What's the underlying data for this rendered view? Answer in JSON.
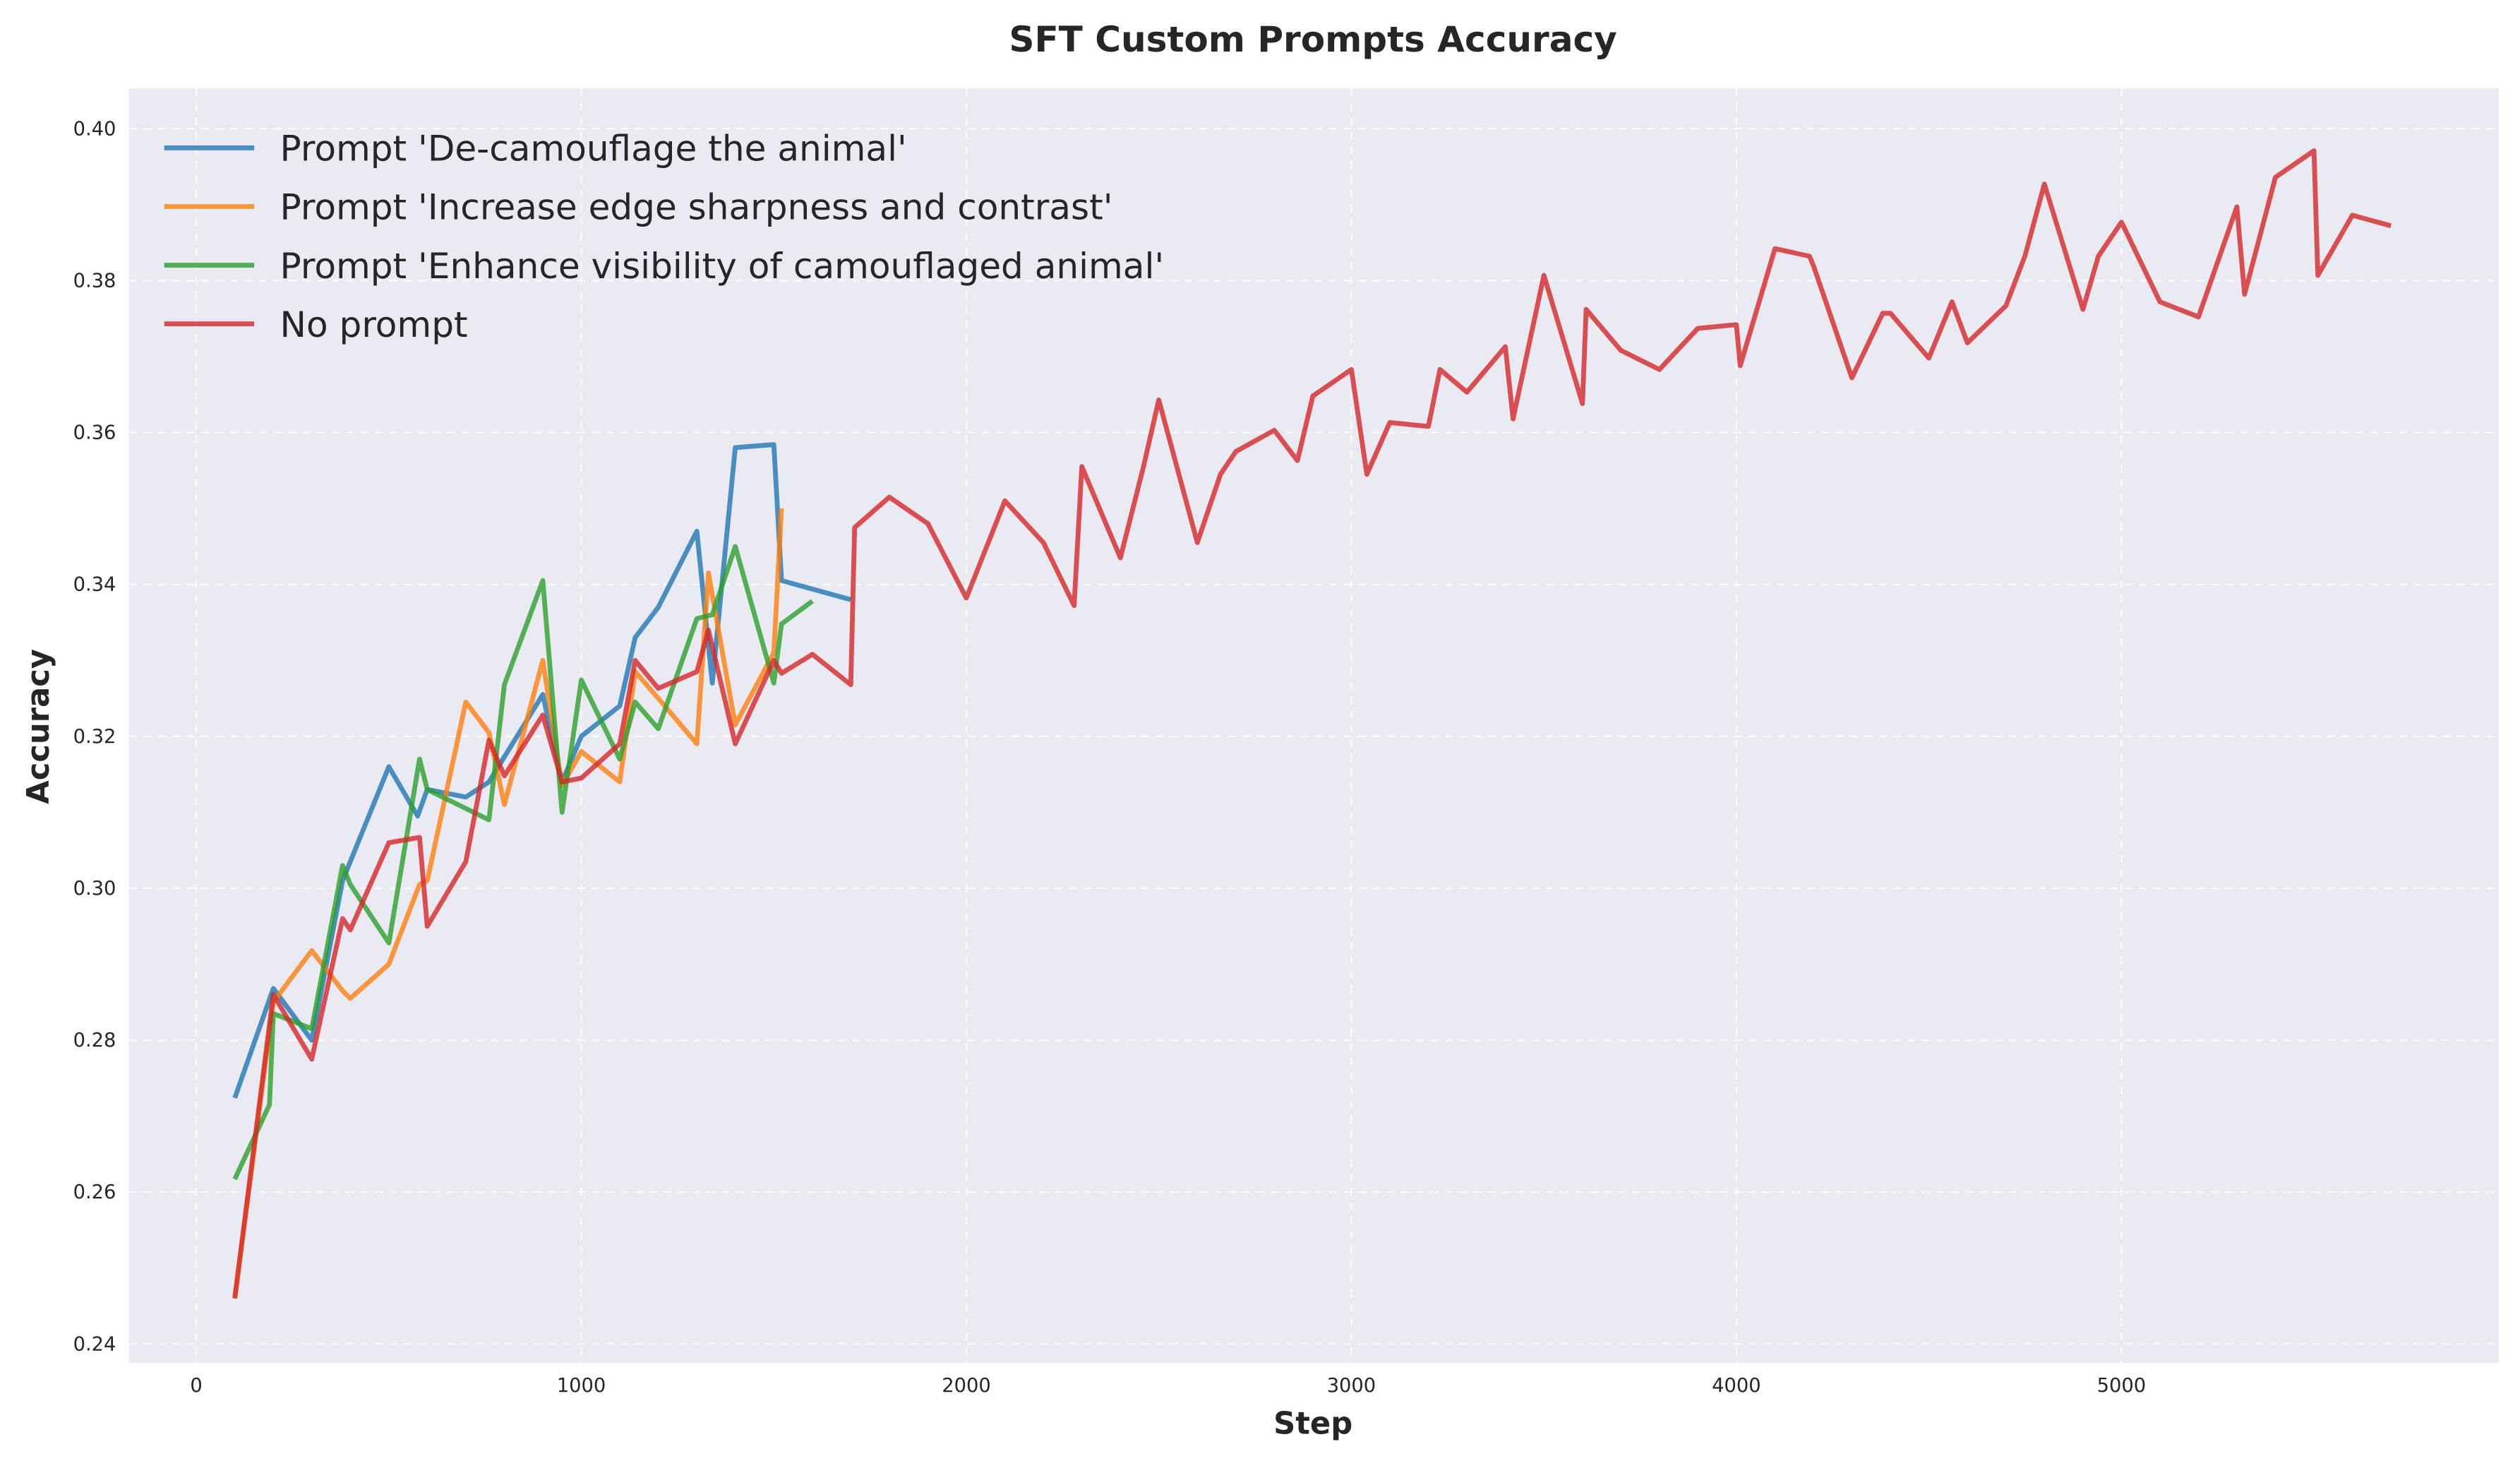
{
  "chart_data": {
    "type": "line",
    "title": "SFT Custom Prompts Accuracy",
    "xlabel": "Step",
    "ylabel": "Accuracy",
    "xlim": [
      -175,
      5980
    ],
    "ylim": [
      0.2375,
      0.4053
    ],
    "xticks": [
      0,
      1000,
      2000,
      3000,
      4000,
      5000
    ],
    "xtick_labels": [
      "0",
      "1000",
      "2000",
      "3000",
      "4000",
      "5000"
    ],
    "yticks": [
      0.24,
      0.26,
      0.28,
      0.3,
      0.32,
      0.34,
      0.36,
      0.38,
      0.4
    ],
    "ytick_labels": [
      "0.24",
      "0.26",
      "0.28",
      "0.30",
      "0.32",
      "0.34",
      "0.36",
      "0.38",
      "0.40"
    ],
    "grid": true,
    "legend_position": "top-left",
    "background": "#eaeaf2",
    "series": [
      {
        "name": "Prompt 'De-camouflage the animal'",
        "color": "#1f77b4",
        "x": [
          100,
          200,
          300,
          380,
          500,
          575,
          600,
          700,
          760,
          900,
          950,
          1000,
          1100,
          1140,
          1200,
          1300,
          1340,
          1400,
          1500,
          1520,
          1700
        ],
        "y": [
          0.2724,
          0.2868,
          0.28,
          0.301,
          0.316,
          0.3095,
          0.313,
          0.312,
          0.314,
          0.3255,
          0.314,
          0.32,
          0.324,
          0.333,
          0.337,
          0.347,
          0.327,
          0.358,
          0.3584,
          0.3405,
          0.338
        ]
      },
      {
        "name": "Prompt 'Increase edge sharpness and contrast'",
        "color": "#ff7f0e",
        "x": [
          100,
          200,
          300,
          380,
          400,
          500,
          580,
          600,
          700,
          760,
          800,
          900,
          950,
          1000,
          1100,
          1140,
          1200,
          1300,
          1330,
          1400,
          1500,
          1520
        ],
        "y": [
          0.246,
          0.285,
          0.2918,
          0.2865,
          0.2855,
          0.29,
          0.3005,
          0.301,
          0.3245,
          0.3205,
          0.311,
          0.33,
          0.3135,
          0.318,
          0.314,
          0.3285,
          0.325,
          0.319,
          0.3415,
          0.3215,
          0.331,
          0.35
        ]
      },
      {
        "name": "Prompt 'Enhance visibility of camouflaged animal'",
        "color": "#2ca02c",
        "x": [
          100,
          190,
          200,
          300,
          380,
          400,
          500,
          580,
          600,
          760,
          800,
          900,
          950,
          1000,
          1100,
          1140,
          1200,
          1300,
          1340,
          1400,
          1500,
          1520,
          1600
        ],
        "y": [
          0.2617,
          0.2715,
          0.2835,
          0.2815,
          0.303,
          0.3005,
          0.2928,
          0.317,
          0.313,
          0.309,
          0.3268,
          0.3405,
          0.31,
          0.3274,
          0.317,
          0.3245,
          0.321,
          0.3355,
          0.336,
          0.345,
          0.327,
          0.3348,
          0.3378
        ]
      },
      {
        "name": "No prompt",
        "color": "#d62728",
        "x": [
          100,
          200,
          300,
          380,
          400,
          500,
          580,
          600,
          700,
          760,
          800,
          900,
          950,
          1000,
          1100,
          1140,
          1200,
          1300,
          1330,
          1400,
          1500,
          1520,
          1600,
          1700,
          1710,
          1800,
          1900,
          2000,
          2100,
          2200,
          2280,
          2300,
          2400,
          2460,
          2500,
          2600,
          2660,
          2700,
          2800,
          2860,
          2900,
          3000,
          3040,
          3100,
          3200,
          3230,
          3300,
          3400,
          3420,
          3500,
          3600,
          3610,
          3700,
          3800,
          3900,
          4000,
          4010,
          4100,
          4190,
          4200,
          4300,
          4380,
          4400,
          4500,
          4560,
          4600,
          4700,
          4750,
          4800,
          4900,
          4940,
          5000,
          5100,
          5200,
          5300,
          5320,
          5400,
          5500,
          5510,
          5600,
          5700
        ],
        "y": [
          0.246,
          0.286,
          0.2775,
          0.296,
          0.2945,
          0.306,
          0.3067,
          0.295,
          0.3035,
          0.3195,
          0.3148,
          0.3228,
          0.314,
          0.3145,
          0.319,
          0.33,
          0.3263,
          0.3285,
          0.334,
          0.319,
          0.33,
          0.3283,
          0.3308,
          0.3268,
          0.3475,
          0.3515,
          0.348,
          0.3382,
          0.351,
          0.3455,
          0.3372,
          0.3555,
          0.3435,
          0.3555,
          0.3643,
          0.3455,
          0.3545,
          0.3575,
          0.3603,
          0.3563,
          0.3648,
          0.3683,
          0.3545,
          0.3613,
          0.3608,
          0.3683,
          0.3653,
          0.3713,
          0.3618,
          0.3807,
          0.3638,
          0.3762,
          0.3708,
          0.3683,
          0.3737,
          0.3742,
          0.3688,
          0.3842,
          0.3832,
          0.382,
          0.3672,
          0.3757,
          0.3757,
          0.3698,
          0.3772,
          0.3718,
          0.3767,
          0.3833,
          0.3927,
          0.3762,
          0.3832,
          0.3877,
          0.3772,
          0.3752,
          0.3897,
          0.3782,
          0.3936,
          0.3971,
          0.3807,
          0.3886,
          0.3872
        ]
      }
    ]
  }
}
